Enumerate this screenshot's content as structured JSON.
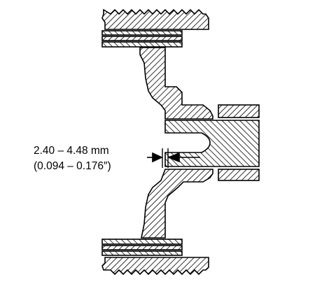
{
  "diagram": {
    "description_label": "cross-section",
    "dimension": {
      "metric": "2.40 – 4.48 mm",
      "imperial": "(0.094 – 0.176″)"
    },
    "colors": {
      "ink": "#000000",
      "background": "#ffffff"
    }
  }
}
